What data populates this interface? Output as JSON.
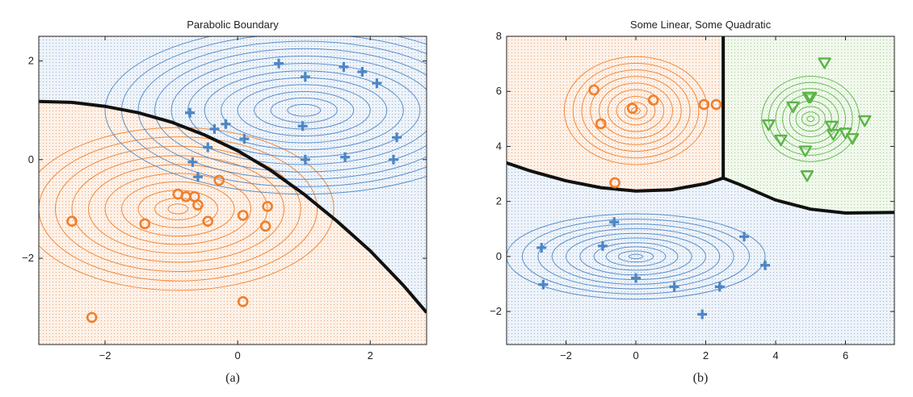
{
  "colors": {
    "orange": "#f07f2a",
    "blue": "#4c86c6",
    "green": "#5bb447",
    "orange_region": "#fbe3d4",
    "blue_region": "#dde7f3",
    "green_region": "#e4f1dd",
    "boundary": "#111111"
  },
  "chart_data": [
    {
      "type": "scatter",
      "title": "Parabolic Boundary",
      "caption": "(a)",
      "xlim": [
        -3,
        2.85
      ],
      "ylim": [
        -3.75,
        2.5
      ],
      "xticks": [
        -2,
        0,
        2
      ],
      "yticks": [
        -2,
        0,
        2
      ],
      "xtick_labels": [
        "−2",
        "0",
        "2"
      ],
      "ytick_labels": [
        "−2",
        "0",
        "2"
      ],
      "grid": false,
      "series": [
        {
          "marker": "circle",
          "color": "orange",
          "points": [
            [
              -2.5,
              -1.25
            ],
            [
              -1.4,
              -1.3
            ],
            [
              -0.9,
              -0.7
            ],
            [
              -0.78,
              -0.75
            ],
            [
              -0.65,
              -0.75
            ],
            [
              -0.6,
              -0.92
            ],
            [
              -0.45,
              -1.25
            ],
            [
              -0.28,
              -0.42
            ],
            [
              0.08,
              -1.13
            ],
            [
              0.45,
              -0.95
            ],
            [
              0.42,
              -1.35
            ],
            [
              -2.2,
              -3.2
            ],
            [
              0.08,
              -2.88
            ]
          ],
          "contour": {
            "cx": -0.9,
            "cy": -1.0,
            "rx": [
              0.15,
              0.35,
              0.6,
              0.85,
              1.1,
              1.35,
              1.6,
              1.85,
              2.1,
              2.35
            ],
            "ry": [
              0.1,
              0.22,
              0.38,
              0.55,
              0.72,
              0.9,
              1.08,
              1.27,
              1.46,
              1.65
            ]
          }
        },
        {
          "marker": "plus",
          "color": "blue",
          "points": [
            [
              0.62,
              1.95
            ],
            [
              1.02,
              1.68
            ],
            [
              1.6,
              1.88
            ],
            [
              1.88,
              1.78
            ],
            [
              2.1,
              1.55
            ],
            [
              -0.72,
              0.95
            ],
            [
              -0.35,
              0.62
            ],
            [
              -0.18,
              0.72
            ],
            [
              0.1,
              0.42
            ],
            [
              0.98,
              0.68
            ],
            [
              2.4,
              0.45
            ],
            [
              -0.68,
              -0.05
            ],
            [
              -0.6,
              -0.35
            ],
            [
              1.02,
              0.0
            ],
            [
              1.62,
              0.05
            ],
            [
              2.35,
              0.0
            ],
            [
              -0.45,
              0.25
            ]
          ],
          "contour": {
            "cx": 1.0,
            "cy": 1.0,
            "rx": [
              0.25,
              0.5,
              0.75,
              1.0,
              1.25,
              1.5,
              1.75,
              2.0,
              2.25,
              2.5,
              2.75,
              3.0
            ],
            "ry": [
              0.12,
              0.25,
              0.38,
              0.52,
              0.66,
              0.8,
              0.95,
              1.1,
              1.25,
              1.4,
              1.55,
              1.7
            ]
          }
        }
      ],
      "boundary": [
        [
          -3,
          1.18
        ],
        [
          -2.5,
          1.16
        ],
        [
          -2,
          1.08
        ],
        [
          -1.5,
          0.95
        ],
        [
          -1,
          0.76
        ],
        [
          -0.5,
          0.5
        ],
        [
          0,
          0.18
        ],
        [
          0.5,
          -0.22
        ],
        [
          1,
          -0.7
        ],
        [
          1.5,
          -1.25
        ],
        [
          2,
          -1.85
        ],
        [
          2.5,
          -2.55
        ],
        [
          2.85,
          -3.1
        ]
      ]
    },
    {
      "type": "scatter",
      "title": "Some Linear, Some Quadratic",
      "caption": "(b)",
      "xlim": [
        -3.7,
        7.4
      ],
      "ylim": [
        -3.2,
        8.0
      ],
      "xticks": [
        -2,
        0,
        2,
        4,
        6
      ],
      "yticks": [
        -2,
        0,
        2,
        4,
        6,
        8
      ],
      "xtick_labels": [
        "−2",
        "0",
        "2",
        "4",
        "6"
      ],
      "ytick_labels": [
        "−2",
        "0",
        "2",
        "4",
        "6",
        "8"
      ],
      "grid": false,
      "series": [
        {
          "marker": "circle",
          "color": "orange",
          "points": [
            [
              -1.2,
              6.05
            ],
            [
              -1.0,
              4.82
            ],
            [
              -0.1,
              5.38
            ],
            [
              0.5,
              5.68
            ],
            [
              1.95,
              5.52
            ],
            [
              2.3,
              5.52
            ],
            [
              -0.6,
              2.68
            ]
          ],
          "contour": {
            "cx": 0.0,
            "cy": 5.3,
            "rx": [
              0.12,
              0.32,
              0.55,
              0.8,
              1.05,
              1.3,
              1.55,
              1.8,
              2.05
            ],
            "ry": [
              0.12,
              0.3,
              0.52,
              0.76,
              1.0,
              1.24,
              1.48,
              1.72,
              1.96
            ]
          }
        },
        {
          "marker": "plus",
          "color": "blue",
          "points": [
            [
              -2.7,
              0.32
            ],
            [
              -2.65,
              -1.02
            ],
            [
              -0.62,
              1.25
            ],
            [
              -0.95,
              0.38
            ],
            [
              0.0,
              -0.78
            ],
            [
              1.1,
              -1.1
            ],
            [
              2.4,
              -1.1
            ],
            [
              3.1,
              0.72
            ],
            [
              3.7,
              -0.32
            ],
            [
              1.9,
              -2.1
            ]
          ],
          "contour": {
            "cx": 0.0,
            "cy": 0.0,
            "rx": [
              0.2,
              0.5,
              0.85,
              1.2,
              1.6,
              2.0,
              2.4,
              2.8,
              3.25,
              3.7
            ],
            "ry": [
              0.08,
              0.2,
              0.35,
              0.5,
              0.67,
              0.84,
              1.01,
              1.18,
              1.36,
              1.55
            ]
          }
        },
        {
          "marker": "triangle",
          "color": "green",
          "points": [
            [
              5.4,
              7.05
            ],
            [
              4.5,
              5.45
            ],
            [
              4.95,
              5.8
            ],
            [
              5.0,
              5.8
            ],
            [
              3.8,
              4.8
            ],
            [
              4.15,
              4.25
            ],
            [
              4.85,
              3.85
            ],
            [
              5.6,
              4.75
            ],
            [
              5.65,
              4.45
            ],
            [
              6.0,
              4.5
            ],
            [
              6.2,
              4.3
            ],
            [
              6.55,
              4.95
            ],
            [
              4.9,
              2.95
            ]
          ],
          "contour": {
            "cx": 5.0,
            "cy": 5.0,
            "rx": [
              0.1,
              0.25,
              0.42,
              0.6,
              0.8,
              1.0,
              1.2,
              1.4
            ],
            "ry": [
              0.1,
              0.25,
              0.45,
              0.65,
              0.88,
              1.1,
              1.32,
              1.55
            ]
          }
        }
      ],
      "boundaries": [
        [
          [
            -3.7,
            3.4
          ],
          [
            -3,
            3.1
          ],
          [
            -2,
            2.75
          ],
          [
            -1,
            2.5
          ],
          [
            0,
            2.38
          ],
          [
            1,
            2.42
          ],
          [
            2,
            2.65
          ],
          [
            2.5,
            2.85
          ]
        ],
        [
          [
            2.5,
            8.0
          ],
          [
            2.5,
            2.85
          ]
        ],
        [
          [
            2.5,
            2.85
          ],
          [
            3,
            2.6
          ],
          [
            4,
            2.05
          ],
          [
            5,
            1.72
          ],
          [
            6,
            1.58
          ],
          [
            7.4,
            1.6
          ]
        ]
      ]
    }
  ]
}
